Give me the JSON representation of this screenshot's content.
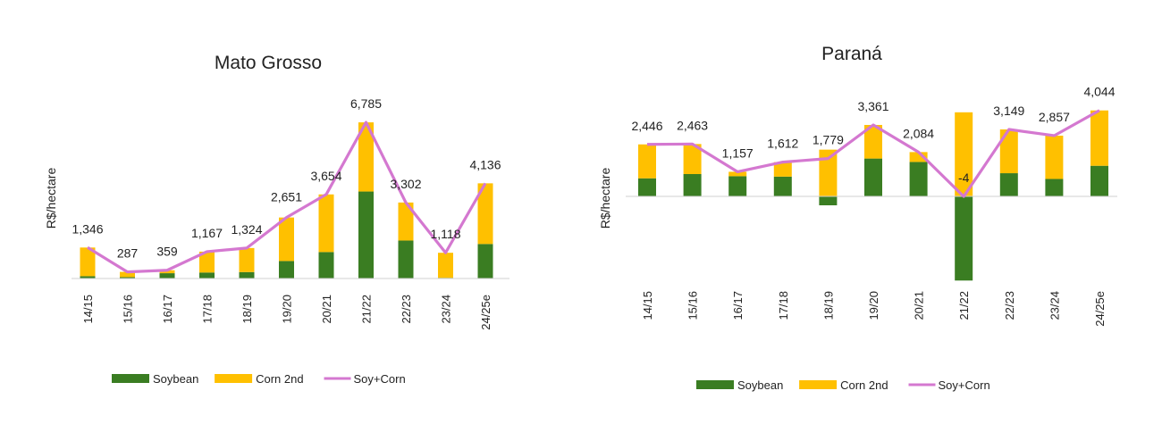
{
  "colors": {
    "soybean": "#3a7d22",
    "corn": "#ffc000",
    "total": "#d478d0"
  },
  "chart_data": [
    {
      "type": "bar",
      "stacked": true,
      "title": "Mato Grosso",
      "xlabel": "",
      "ylabel": "R$/hectare",
      "categories": [
        "14/15",
        "15/16",
        "16/17",
        "17/18",
        "18/19",
        "19/20",
        "20/21",
        "21/22",
        "22/23",
        "23/24",
        "24/25e"
      ],
      "series": [
        {
          "name": "Soybean",
          "kind": "bar",
          "values": [
            100,
            60,
            230,
            260,
            280,
            760,
            1150,
            3780,
            1650,
            30,
            1500
          ]
        },
        {
          "name": "Corn 2nd",
          "kind": "bar",
          "values": [
            1246,
            227,
            129,
            907,
            1044,
            1891,
            2504,
            3005,
            1652,
            1088,
            2636
          ]
        },
        {
          "name": "Soy+Corn",
          "kind": "line",
          "values": [
            1346,
            287,
            359,
            1167,
            1324,
            2651,
            3654,
            6785,
            3302,
            1118,
            4136
          ]
        }
      ],
      "data_labels": [
        "1,346",
        "287",
        "359",
        "1,167",
        "1,324",
        "2,651",
        "3,654",
        "6,785",
        "3,302",
        "1,118",
        "4,136"
      ],
      "ylim": [
        0,
        7400
      ],
      "grid": false,
      "legend": "bottom"
    },
    {
      "type": "bar",
      "stacked": true,
      "title": "Paraná",
      "xlabel": "",
      "ylabel": "R$/hectare",
      "categories": [
        "14/15",
        "15/16",
        "16/17",
        "17/18",
        "18/19",
        "19/20",
        "20/21",
        "21/22",
        "22/23",
        "23/24",
        "24/25e"
      ],
      "series": [
        {
          "name": "Soybean",
          "kind": "bar",
          "values": [
            850,
            1050,
            950,
            930,
            -420,
            1780,
            1620,
            -3960,
            1090,
            820,
            1440
          ]
        },
        {
          "name": "Corn 2nd",
          "kind": "bar",
          "values": [
            1596,
            1413,
            207,
            682,
            2199,
            1581,
            464,
            3956,
            2059,
            2037,
            2604
          ]
        },
        {
          "name": "Soy+Corn",
          "kind": "line",
          "values": [
            2446,
            2463,
            1157,
            1612,
            1779,
            3361,
            2084,
            -4,
            3149,
            2857,
            4044
          ]
        }
      ],
      "data_labels": [
        "2,446",
        "2,463",
        "1,157",
        "1,612",
        "1,779",
        "3,361",
        "2,084",
        "-4",
        "3,149",
        "2,857",
        "4,044"
      ],
      "ylim": [
        -4000,
        4100
      ],
      "grid": false,
      "legend": "bottom"
    }
  ]
}
